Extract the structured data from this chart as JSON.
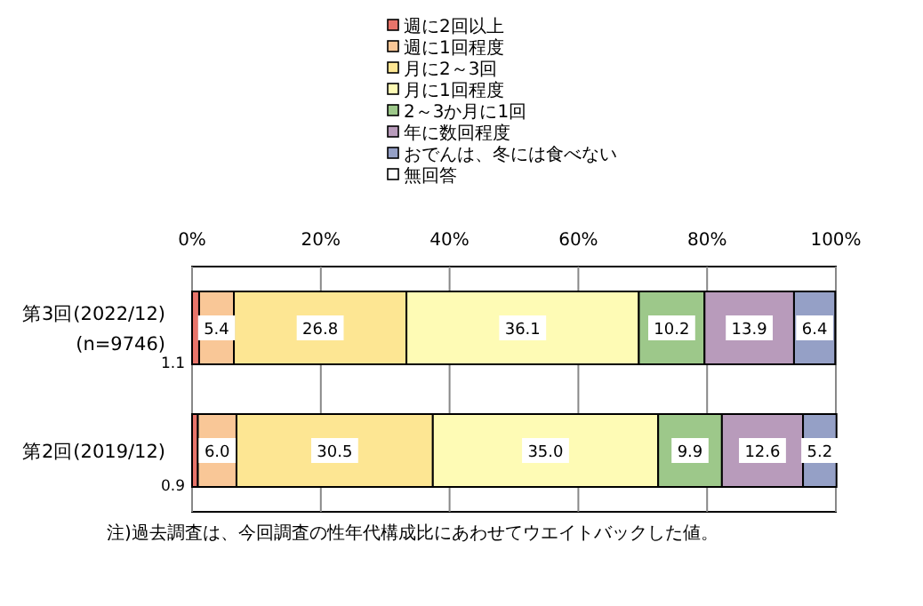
{
  "chart_data": {
    "type": "bar",
    "orientation": "horizontal",
    "stacked": true,
    "grid": "x",
    "legend": "top",
    "categories": [
      "第3回(2022/12)\n(n=9746)",
      "第2回(2019/12)"
    ],
    "xlim": [
      0,
      100
    ],
    "xticks": [
      {
        "value": 0,
        "label": "0%"
      },
      {
        "value": 20,
        "label": "20%"
      },
      {
        "value": 40,
        "label": "40%"
      },
      {
        "value": 60,
        "label": "60%"
      },
      {
        "value": 80,
        "label": "80%"
      },
      {
        "value": 100,
        "label": "100%"
      }
    ],
    "series": [
      {
        "name": "週に2回以上",
        "color": "#e8746a",
        "values": [
          1.1,
          0.9
        ],
        "value_labels": [
          "1.1",
          "0.9"
        ]
      },
      {
        "name": "週に1回程度",
        "color": "#f9c797",
        "values": [
          5.4,
          6.0
        ],
        "value_labels": [
          "5.4",
          "6.0"
        ]
      },
      {
        "name": "月に2～3回",
        "color": "#fde693",
        "values": [
          26.8,
          30.5
        ],
        "value_labels": [
          "26.8",
          "30.5"
        ]
      },
      {
        "name": "月に1回程度",
        "color": "#fefbb5",
        "values": [
          36.1,
          35.0
        ],
        "value_labels": [
          "36.1",
          "35.0"
        ]
      },
      {
        "name": "2～3か月に1回",
        "color": "#9dc88a",
        "values": [
          10.2,
          9.9
        ],
        "value_labels": [
          "10.2",
          "9.9"
        ]
      },
      {
        "name": "年に数回程度",
        "color": "#b89bbb",
        "values": [
          13.9,
          12.6
        ],
        "value_labels": [
          "13.9",
          "12.6"
        ]
      },
      {
        "name": "おでんは、冬には食べない",
        "color": "#95a0c6",
        "values": [
          6.4,
          5.2
        ],
        "value_labels": [
          "6.4",
          "5.2"
        ]
      },
      {
        "name": "無回答",
        "color": "#ffffff",
        "values": [
          null,
          null
        ]
      }
    ],
    "annotations": [
      "注)過去調査は、今回調査の性年代構成比にあわせてウエイトバックした値。"
    ]
  }
}
